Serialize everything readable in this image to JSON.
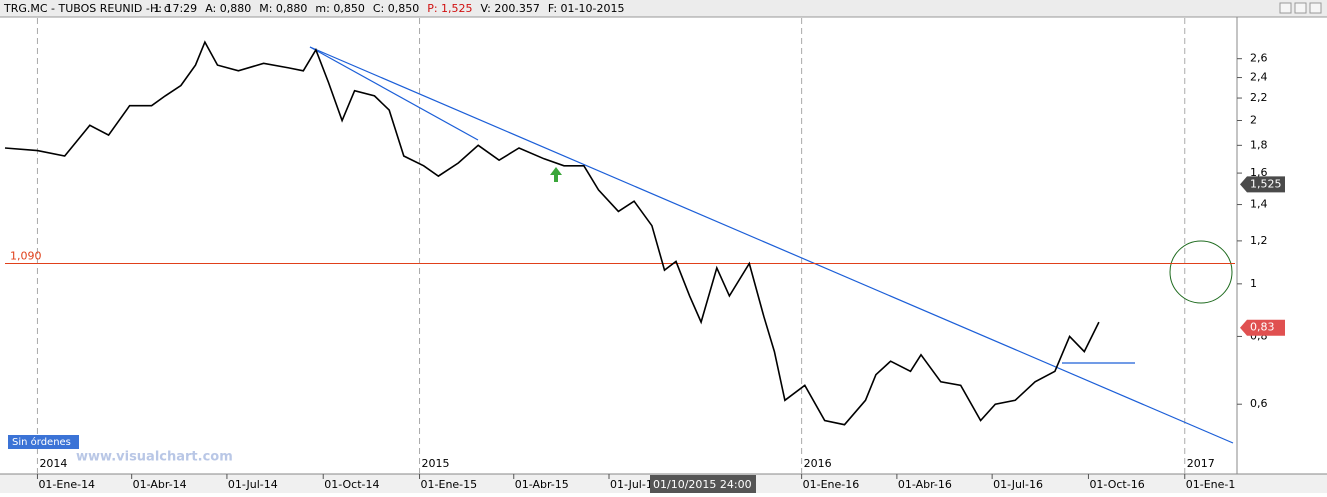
{
  "header": {
    "symbol": "TRG.MC - TUBOS REUNID - 1 d",
    "fields": [
      "H: 17:29",
      "A: 0,880",
      "M: 0,880",
      "m: 0,850",
      "C: 0,850",
      "P: 1,525",
      "V: 200.357",
      "F: 01-10-2015"
    ]
  },
  "chart_data": {
    "type": "line",
    "log_scale": true,
    "color": "#000000",
    "xlim": [
      "2013-12-01",
      "2017-02-18"
    ],
    "ylim": [
      0.45,
      3.09
    ],
    "yticks": [
      {
        "value": 0.6,
        "label": "0,6"
      },
      {
        "value": 0.8,
        "label": "0,8"
      },
      1,
      {
        "value": 1.2,
        "label": "1,2"
      },
      {
        "value": 1.4,
        "label": "1,4"
      },
      {
        "value": 1.6,
        "label": "1,6"
      },
      {
        "value": 1.8,
        "label": "1,8"
      },
      2,
      {
        "value": 2.2,
        "label": "2,2"
      },
      {
        "value": 2.4,
        "label": "2,4"
      },
      {
        "value": 2.6,
        "label": "2,6"
      }
    ],
    "xticks": [
      {
        "value": "2014-01-01",
        "label": "01-Ene-14"
      },
      {
        "value": "2014-04-01",
        "label": "01-Abr-14"
      },
      {
        "value": "2014-07-01",
        "label": "01-Jul-14"
      },
      {
        "value": "2014-10-01",
        "label": "01-Oct-14"
      },
      {
        "value": "2015-01-01",
        "label": "01-Ene-15"
      },
      {
        "value": "2015-04-01",
        "label": "01-Abr-15"
      },
      {
        "value": "2015-07-01",
        "label": "01-Jul-1"
      },
      {
        "value": "2016-01-01",
        "label": "01-Ene-16"
      },
      {
        "value": "2016-04-01",
        "label": "01-Abr-16"
      },
      {
        "value": "2016-07-01",
        "label": "01-Jul-16"
      },
      {
        "value": "2016-10-01",
        "label": "01-Oct-16"
      },
      {
        "value": "2017-01-01",
        "label": "01-Ene-1"
      }
    ],
    "year_ticks": [
      {
        "value": "2014-01-01",
        "label": "2014"
      },
      {
        "value": "2015-01-01",
        "label": "2015"
      },
      {
        "value": "2016-01-01",
        "label": "2016"
      },
      {
        "value": "2017-01-01",
        "label": "2017"
      }
    ],
    "x": [
      "2013-12-01",
      "2014-01-01",
      "2014-01-27",
      "2014-02-20",
      "2014-03-10",
      "2014-03-30",
      "2014-04-20",
      "2014-05-03",
      "2014-05-18",
      "2014-06-01",
      "2014-06-10",
      "2014-06-22",
      "2014-07-12",
      "2014-08-05",
      "2014-08-29",
      "2014-09-12",
      "2014-09-24",
      "2014-10-06",
      "2014-10-19",
      "2014-10-31",
      "2014-11-19",
      "2014-12-03",
      "2014-12-17",
      "2015-01-05",
      "2015-01-19",
      "2015-02-07",
      "2015-02-26",
      "2015-03-18",
      "2015-04-06",
      "2015-04-30",
      "2015-05-19",
      "2015-06-07",
      "2015-06-21",
      "2015-07-10",
      "2015-07-25",
      "2015-08-11",
      "2015-08-23",
      "2015-09-03",
      "2015-09-16",
      "2015-09-27",
      "2015-10-12",
      "2015-10-24",
      "2015-11-12",
      "2015-11-26",
      "2015-12-06",
      "2015-12-16",
      "2016-01-04",
      "2016-01-23",
      "2016-02-11",
      "2016-03-02",
      "2016-03-12",
      "2016-03-26",
      "2016-04-14",
      "2016-04-24",
      "2016-05-13",
      "2016-06-01",
      "2016-06-20",
      "2016-07-04",
      "2016-07-23",
      "2016-08-11",
      "2016-08-30",
      "2016-09-13",
      "2016-09-27",
      "2016-10-11"
    ],
    "series": [
      {
        "values": [
          1.78,
          1.76,
          1.72,
          1.96,
          1.88,
          2.13,
          2.13,
          2.22,
          2.32,
          2.53,
          2.79,
          2.53,
          2.47,
          2.55,
          2.5,
          2.47,
          2.7,
          2.35,
          2.0,
          2.27,
          2.22,
          2.09,
          1.72,
          1.65,
          1.58,
          1.67,
          1.8,
          1.69,
          1.78,
          1.7,
          1.65,
          1.65,
          1.49,
          1.36,
          1.42,
          1.28,
          1.06,
          1.1,
          0.95,
          0.85,
          1.07,
          0.95,
          1.09,
          0.87,
          0.75,
          0.61,
          0.65,
          0.56,
          0.55,
          0.61,
          0.68,
          0.72,
          0.69,
          0.74,
          0.66,
          0.65,
          0.56,
          0.6,
          0.61,
          0.66,
          0.69,
          0.8,
          0.75,
          0.85
        ]
      }
    ],
    "hline": {
      "value": 1.09,
      "label": "1,090",
      "color": "#e0401a"
    },
    "price_tags": [
      {
        "value": 1.525,
        "label": "1,525",
        "color": "#4a4a4a"
      },
      {
        "value": 0.83,
        "label": "0,83",
        "color": "#e05050"
      }
    ],
    "cursor_label": "01/10/2015 24:00",
    "orders_label": "Sin órdenes",
    "watermark": "www.visualchart.com"
  }
}
